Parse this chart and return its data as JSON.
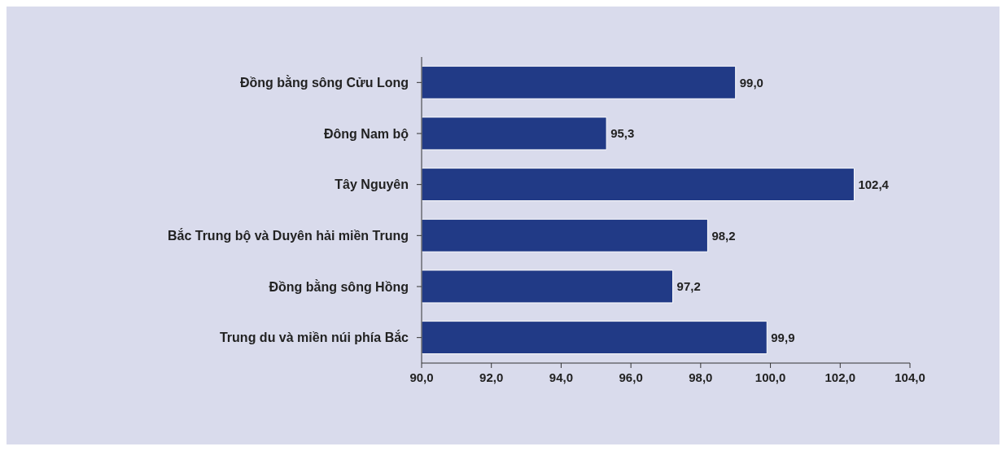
{
  "chart_data": {
    "type": "bar",
    "orientation": "horizontal",
    "categories": [
      "Đồng bằng sông Cửu Long",
      "Đông Nam bộ",
      "Tây Nguyên",
      "Bắc Trung bộ và Duyên hải miền Trung",
      "Đồng bằng sông Hồng",
      "Trung du và miền núi phía Bắc"
    ],
    "values": [
      99.0,
      95.3,
      102.4,
      98.2,
      97.2,
      99.9
    ],
    "value_labels": [
      "99,0",
      "95,3",
      "102,4",
      "98,2",
      "97,2",
      "99,9"
    ],
    "color": "#213a86",
    "xlim": [
      90,
      104
    ],
    "xticks": [
      {
        "value": 90,
        "label": "90,0"
      },
      {
        "value": 92,
        "label": "92,0"
      },
      {
        "value": 94,
        "label": "94,0"
      },
      {
        "value": 96,
        "label": "96,0"
      },
      {
        "value": 98,
        "label": "98,0"
      },
      {
        "value": 100,
        "label": "100,0"
      },
      {
        "value": 102,
        "label": "102,0"
      },
      {
        "value": 104,
        "label": "104,0"
      }
    ],
    "grid": false,
    "legend": false
  }
}
